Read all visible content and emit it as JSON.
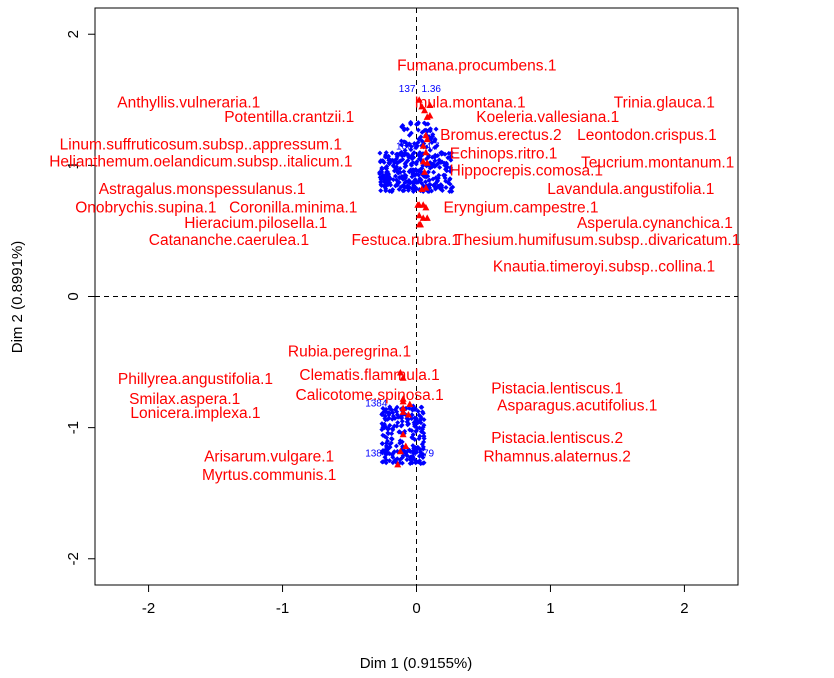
{
  "chart_data": {
    "type": "scatter",
    "title": "",
    "xlabel": "Dim 1 (0.9155%)",
    "ylabel": "Dim 2 (0.8991%)",
    "xlim": [
      -2.4,
      2.4
    ],
    "ylim": [
      -2.2,
      2.2
    ],
    "x_ticks": [
      -2,
      -1,
      0,
      1,
      2
    ],
    "y_ticks": [
      -2,
      -1,
      0,
      1,
      2
    ],
    "x_tick_labels": [
      "-2",
      "-1",
      "0",
      "1",
      "2"
    ],
    "y_tick_labels": [
      "-2",
      "-1",
      "0",
      "1",
      "2"
    ],
    "grid": false,
    "reference_lines": {
      "x": 0,
      "y": 0,
      "style": "dashed"
    },
    "colors": {
      "species": "#ff0000",
      "sites": "#0000ff"
    },
    "species": [
      {
        "label": "Fumana.procumbens.1",
        "x": 0.02,
        "y": 1.5,
        "lx": 0.45,
        "ly": 1.76
      },
      {
        "label": "Anthyllis.vulneraria.1",
        "x": 0.04,
        "y": 1.45,
        "lx": -1.7,
        "ly": 1.48
      },
      {
        "label": "Inula.montana.1",
        "x": 0.1,
        "y": 1.46,
        "lx": 0.4,
        "ly": 1.48
      },
      {
        "label": "Trinia.glauca.1",
        "x": 0.06,
        "y": 1.42,
        "lx": 1.85,
        "ly": 1.48
      },
      {
        "label": "Potentilla.crantzii.1",
        "x": 0.08,
        "y": 1.37,
        "lx": -0.95,
        "ly": 1.37
      },
      {
        "label": "Koeleria.vallesiana.1",
        "x": 0.1,
        "y": 1.38,
        "lx": 0.98,
        "ly": 1.37
      },
      {
        "label": "Bromus.erectus.2",
        "x": 0.07,
        "y": 1.23,
        "lx": 0.63,
        "ly": 1.23
      },
      {
        "label": "Leontodon.crispus.1",
        "x": 0.08,
        "y": 1.2,
        "lx": 1.72,
        "ly": 1.23
      },
      {
        "label": "Linum.suffruticosum.subsp..appressum.1",
        "x": 0.05,
        "y": 1.15,
        "lx": -1.61,
        "ly": 1.16
      },
      {
        "label": "Echinops.ritro.1",
        "x": 0.07,
        "y": 1.1,
        "lx": 0.65,
        "ly": 1.09
      },
      {
        "label": "Helianthemum.oelandicum.subsp..italicum.1",
        "x": 0.05,
        "y": 1.03,
        "lx": -1.61,
        "ly": 1.03
      },
      {
        "label": "Teucrium.montanum.1",
        "x": 0.08,
        "y": 1.02,
        "lx": 1.8,
        "ly": 1.02
      },
      {
        "label": "Hippocrepis.comosa.1",
        "x": 0.06,
        "y": 0.95,
        "lx": 0.82,
        "ly": 0.96
      },
      {
        "label": "Astragalus.monspessulanus.1",
        "x": 0.04,
        "y": 0.82,
        "lx": -1.6,
        "ly": 0.82
      },
      {
        "label": "Lavandula.angustifolia.1",
        "x": 0.07,
        "y": 0.83,
        "lx": 1.6,
        "ly": 0.82
      },
      {
        "label": "Onobrychis.supina.1",
        "x": 0.01,
        "y": 0.7,
        "lx": -2.02,
        "ly": 0.68
      },
      {
        "label": "Coronilla.minima.1",
        "x": 0.02,
        "y": 0.7,
        "lx": -0.92,
        "ly": 0.68
      },
      {
        "label": "Eryngium.campestre.1",
        "x": 0.05,
        "y": 0.7,
        "lx": 0.78,
        "ly": 0.68
      },
      {
        "label": "Hieracium.pilosella.1",
        "x": 0.02,
        "y": 0.62,
        "lx": -1.2,
        "ly": 0.56
      },
      {
        "label": "Asperula.cynanchica.1",
        "x": 0.05,
        "y": 0.6,
        "lx": 1.78,
        "ly": 0.56
      },
      {
        "label": "Catananche.caerulea.1",
        "x": 0.02,
        "y": 0.55,
        "lx": -1.4,
        "ly": 0.43
      },
      {
        "label": "Festuca.rubra.1",
        "x": 0.03,
        "y": 0.55,
        "lx": -0.08,
        "ly": 0.43
      },
      {
        "label": "Thesium.humifusum.subsp..divaricatum.1",
        "x": 0.08,
        "y": 0.6,
        "lx": 1.35,
        "ly": 0.43
      },
      {
        "label": "Knautia.timeroyi.subsp..collina.1",
        "x": 0.07,
        "y": 0.68,
        "lx": 1.4,
        "ly": 0.23
      },
      {
        "label": "Rubia.peregrina.1",
        "x": -0.12,
        "y": -0.58,
        "lx": -0.5,
        "ly": -0.42
      },
      {
        "label": "Phillyrea.angustifolia.1",
        "x": -0.1,
        "y": -0.8,
        "lx": -1.65,
        "ly": -0.63
      },
      {
        "label": "Clematis.flammula.1",
        "x": -0.1,
        "y": -0.62,
        "lx": -0.35,
        "ly": -0.6
      },
      {
        "label": "Pistacia.lentiscus.1",
        "x": -0.05,
        "y": -0.82,
        "lx": 1.05,
        "ly": -0.7
      },
      {
        "label": "Smilax.aspera.1",
        "x": -0.1,
        "y": -0.85,
        "lx": -1.73,
        "ly": -0.78
      },
      {
        "label": "Calicotome.spinosa.1",
        "x": -0.1,
        "y": -0.78,
        "lx": -0.35,
        "ly": -0.75
      },
      {
        "label": "Asparagus.acutifolius.1",
        "x": -0.06,
        "y": -0.9,
        "lx": 1.2,
        "ly": -0.83
      },
      {
        "label": "Lonicera.implexa.1",
        "x": -0.1,
        "y": -0.88,
        "lx": -1.65,
        "ly": -0.89
      },
      {
        "label": "Pistacia.lentiscus.2",
        "x": -0.1,
        "y": -1.05,
        "lx": 1.05,
        "ly": -1.08
      },
      {
        "label": "Arisarum.vulgare.1",
        "x": -0.12,
        "y": -1.18,
        "lx": -1.1,
        "ly": -1.22
      },
      {
        "label": "Rhamnus.alaternus.2",
        "x": -0.08,
        "y": -1.14,
        "lx": 1.05,
        "ly": -1.22
      },
      {
        "label": "Myrtus.communis.1",
        "x": -0.14,
        "y": -1.28,
        "lx": -1.1,
        "ly": -1.36
      }
    ],
    "site_labels": [
      {
        "label": "137",
        "x": -0.07,
        "y": 1.56
      },
      {
        "label": "1.36",
        "x": 0.11,
        "y": 1.56
      },
      {
        "label": "1669",
        "x": -0.07,
        "y": 1.12
      },
      {
        "label": "4.7",
        "x": 0.12,
        "y": 1.12
      },
      {
        "label": "1384",
        "x": -0.3,
        "y": -0.84
      },
      {
        "label": "1384",
        "x": -0.3,
        "y": -1.22
      },
      {
        "label": "57",
        "x": 0.0,
        "y": -1.22
      },
      {
        "label": "79",
        "x": 0.09,
        "y": -1.22
      }
    ]
  }
}
